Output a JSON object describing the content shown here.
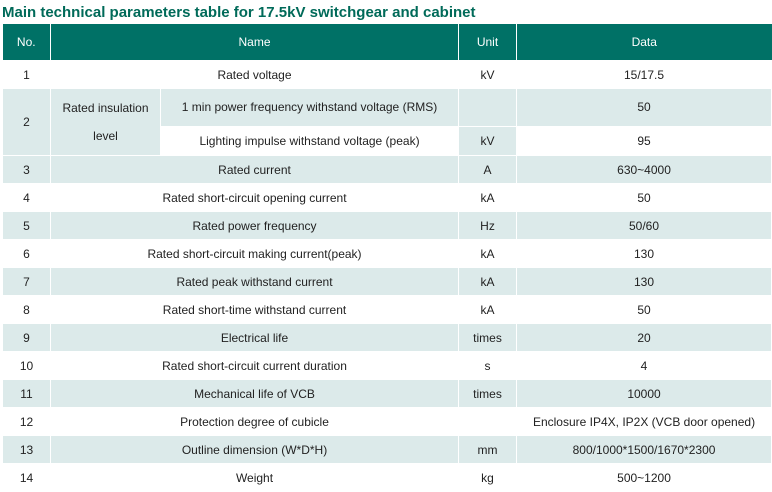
{
  "title": "Main technical parameters table for 17.5kV switchgear and cabinet",
  "headers": {
    "no": "No.",
    "name": "Name",
    "unit": "Unit",
    "data": "Data"
  },
  "colors": {
    "header_bg": "#007166",
    "title": "#006a59",
    "stripe": "#dceaea"
  },
  "rows": [
    {
      "no": "1",
      "name": "Rated voltage",
      "unit": "kV",
      "data": "15/17.5"
    },
    {
      "no": "2",
      "group_line1": "Rated insulation",
      "group_line2": "level",
      "sub": [
        {
          "name": "1 min power frequency withstand voltage (RMS)",
          "data": "50"
        },
        {
          "name": "Lighting impulse withstand voltage (peak)",
          "data": "95"
        }
      ],
      "unit": "kV"
    },
    {
      "no": "3",
      "name": "Rated current",
      "unit": "A",
      "data": "630~4000"
    },
    {
      "no": "4",
      "name": "Rated short-circuit opening current",
      "unit": "kA",
      "data": "50"
    },
    {
      "no": "5",
      "name": "Rated power frequency",
      "unit": "Hz",
      "data": "50/60"
    },
    {
      "no": "6",
      "name": "Rated short-circuit making current(peak)",
      "unit": "kA",
      "data": "130"
    },
    {
      "no": "7",
      "name": "Rated peak withstand current",
      "unit": "kA",
      "data": "130"
    },
    {
      "no": "8",
      "name": "Rated short-time withstand current",
      "unit": "kA",
      "data": "50"
    },
    {
      "no": "9",
      "name": "Electrical life",
      "unit": "times",
      "data": "20"
    },
    {
      "no": "10",
      "name": "Rated short-circuit current duration",
      "unit": "s",
      "data": "4"
    },
    {
      "no": "11",
      "name": "Mechanical life of VCB",
      "unit": "times",
      "data": "10000"
    },
    {
      "no": "12",
      "name": "Protection degree of cubicle",
      "unit": "",
      "data": "Enclosure IP4X, IP2X (VCB door opened)"
    },
    {
      "no": "13",
      "name": "Outline dimension (W*D*H)",
      "unit": "mm",
      "data": "800/1000*1500/1670*2300"
    },
    {
      "no": "14",
      "name": "Weight",
      "unit": "kg",
      "data": "500~1200"
    }
  ]
}
